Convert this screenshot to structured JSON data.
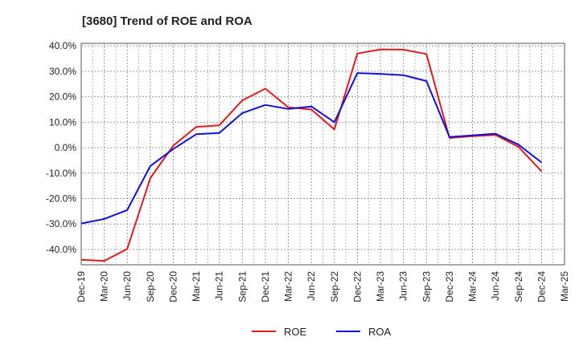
{
  "chart_data": {
    "type": "line",
    "title": "[3680]  Trend of ROE and ROA",
    "xlabel": "",
    "ylabel": "",
    "ylim": [
      -46,
      41
    ],
    "y_ticks": [
      40,
      30,
      20,
      10,
      0,
      -10,
      -20,
      -30,
      -40
    ],
    "y_tick_labels": [
      "40.0%",
      "30.0%",
      "20.0%",
      "10.0%",
      "0.0%",
      "-10.0%",
      "-20.0%",
      "-30.0%",
      "-40.0%"
    ],
    "categories": [
      "Dec-19",
      "Mar-20",
      "Jun-20",
      "Sep-20",
      "Dec-20",
      "Mar-21",
      "Jun-21",
      "Sep-21",
      "Dec-21",
      "Mar-22",
      "Jun-22",
      "Sep-22",
      "Dec-22",
      "Mar-23",
      "Jun-23",
      "Sep-23",
      "Dec-23",
      "Mar-24",
      "Jun-24",
      "Sep-24",
      "Dec-24",
      "Mar-25"
    ],
    "grid": true,
    "legend_position": "bottom-center",
    "series": [
      {
        "name": "ROE",
        "color": "#e31a1c",
        "values": [
          -44.0,
          -44.5,
          -39.8,
          -12.0,
          0.8,
          8.2,
          8.8,
          18.6,
          23.2,
          15.8,
          15.0,
          7.2,
          37.0,
          38.6,
          38.5,
          36.8,
          3.8,
          4.5,
          5.0,
          0.3,
          -9.3,
          null
        ]
      },
      {
        "name": "ROA",
        "color": "#1010e0",
        "values": [
          -29.8,
          -28.0,
          -24.5,
          -7.2,
          -0.5,
          5.3,
          5.8,
          13.6,
          16.8,
          15.2,
          16.2,
          10.0,
          29.3,
          29.0,
          28.5,
          26.2,
          4.2,
          4.8,
          5.5,
          1.2,
          -5.8,
          null
        ]
      }
    ]
  }
}
